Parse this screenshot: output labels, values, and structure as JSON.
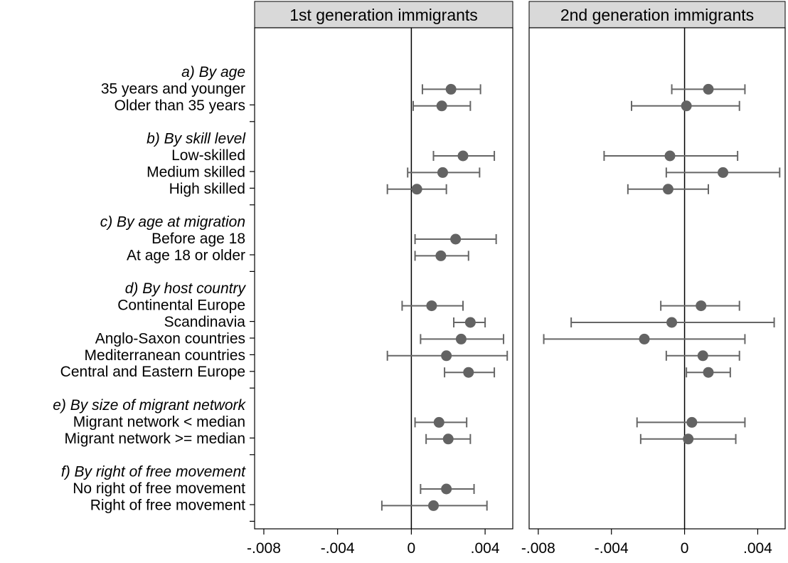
{
  "chart_data": {
    "type": "scatter",
    "subtype": "coefficient-plot-with-confidence-intervals",
    "panels": [
      {
        "title": "1st generation immigrants"
      },
      {
        "title": "2nd generation immigrants"
      }
    ],
    "xlim": [
      -0.0085,
      0.0055
    ],
    "xticks": [
      "-.008",
      "-.004",
      "0",
      ".004"
    ],
    "xtick_values": [
      -0.008,
      -0.004,
      0,
      0.004
    ],
    "reference_line": 0,
    "rows": [
      {
        "kind": "group",
        "label": "a) By age"
      },
      {
        "kind": "item",
        "label": "35 years and younger",
        "p1": [
          0.00215,
          0.0006,
          0.00375
        ],
        "p2": [
          0.0013,
          -0.0007,
          0.0033
        ]
      },
      {
        "kind": "item",
        "label": "Older than 35 years",
        "p1": [
          0.00165,
          0.0001,
          0.0032
        ],
        "p2": [
          0.0001,
          -0.0029,
          0.003
        ]
      },
      {
        "kind": "gap"
      },
      {
        "kind": "group",
        "label": "b) By skill level"
      },
      {
        "kind": "item",
        "label": "Low-skilled",
        "p1": [
          0.0028,
          0.0012,
          0.0045
        ],
        "p2": [
          -0.0008,
          -0.0044,
          0.0029
        ]
      },
      {
        "kind": "item",
        "label": "Medium skilled",
        "p1": [
          0.0017,
          -0.0002,
          0.0037
        ],
        "p2": [
          0.0021,
          -0.001,
          0.0052
        ]
      },
      {
        "kind": "item",
        "label": "High skilled",
        "p1": [
          0.0003,
          -0.0013,
          0.0019
        ],
        "p2": [
          -0.0009,
          -0.0031,
          0.0013
        ]
      },
      {
        "kind": "gap"
      },
      {
        "kind": "group",
        "label": "c) By age at migration"
      },
      {
        "kind": "item",
        "label": "Before age 18",
        "p1": [
          0.0024,
          0.0002,
          0.0046
        ],
        "p2": null
      },
      {
        "kind": "item",
        "label": "At age 18 or older",
        "p1": [
          0.0016,
          0.0002,
          0.0031
        ],
        "p2": null
      },
      {
        "kind": "gap"
      },
      {
        "kind": "group",
        "label": "d) By host country"
      },
      {
        "kind": "item",
        "label": "Continental Europe",
        "p1": [
          0.0011,
          -0.0005,
          0.0028
        ],
        "p2": [
          0.0009,
          -0.0013,
          0.003
        ]
      },
      {
        "kind": "item",
        "label": "Scandinavia",
        "p1": [
          0.0032,
          0.0023,
          0.004
        ],
        "p2": [
          -0.0007,
          -0.0062,
          0.0049
        ]
      },
      {
        "kind": "item",
        "label": "Anglo-Saxon countries",
        "p1": [
          0.0027,
          0.0005,
          0.005
        ],
        "p2": [
          -0.0022,
          -0.0077,
          0.0033
        ]
      },
      {
        "kind": "item",
        "label": "Mediterranean countries",
        "p1": [
          0.0019,
          -0.0013,
          0.0052
        ],
        "p2": [
          0.001,
          -0.001,
          0.003
        ]
      },
      {
        "kind": "item",
        "label": "Central and Eastern Europe",
        "p1": [
          0.0031,
          0.0018,
          0.0045
        ],
        "p2": [
          0.0013,
          0.0001,
          0.0025
        ]
      },
      {
        "kind": "gap"
      },
      {
        "kind": "group",
        "label": "e) By size of migrant network"
      },
      {
        "kind": "item",
        "label": "Migrant network < median",
        "p1": [
          0.0015,
          0.0002,
          0.003
        ],
        "p2": [
          0.0004,
          -0.0026,
          0.0033
        ]
      },
      {
        "kind": "item",
        "label": "Migrant network >= median",
        "p1": [
          0.002,
          0.0008,
          0.0032
        ],
        "p2": [
          0.0002,
          -0.0024,
          0.0028
        ]
      },
      {
        "kind": "gap"
      },
      {
        "kind": "group",
        "label": "f) By right of free movement"
      },
      {
        "kind": "item",
        "label": "No right of free movement",
        "p1": [
          0.0019,
          0.0005,
          0.0034
        ],
        "p2": null
      },
      {
        "kind": "item",
        "label": "Right of free movement",
        "p1": [
          0.0012,
          -0.0016,
          0.0041
        ],
        "p2": null
      }
    ]
  },
  "colors": {
    "marker": "#636363",
    "whisker": "#666666",
    "title_bg": "#d9d9d9",
    "axis": "#000000"
  }
}
